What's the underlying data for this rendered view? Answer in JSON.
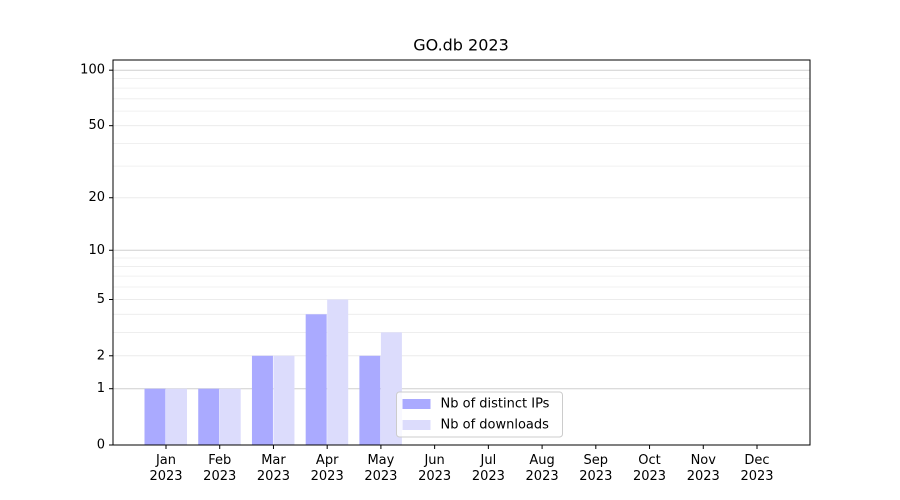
{
  "chart_data": {
    "type": "bar",
    "title": "GO.db 2023",
    "categories": [
      "Jan 2023",
      "Feb 2023",
      "Mar 2023",
      "Apr 2023",
      "May 2023",
      "Jun 2023",
      "Jul 2023",
      "Aug 2023",
      "Sep 2023",
      "Oct 2023",
      "Nov 2023",
      "Dec 2023"
    ],
    "series": [
      {
        "name": "Nb of distinct IPs",
        "color": "#aaaaff",
        "values": [
          1,
          1,
          2,
          4,
          2,
          0,
          0,
          0,
          0,
          0,
          0,
          0
        ]
      },
      {
        "name": "Nb of downloads",
        "color": "#dcdcfc",
        "values": [
          1,
          1,
          2,
          5,
          3,
          0,
          0,
          0,
          0,
          0,
          0,
          0
        ]
      }
    ],
    "yscale": "log1p",
    "ylim": [
      0,
      113.5
    ],
    "yticks": [
      0,
      1,
      2,
      5,
      10,
      20,
      50,
      100
    ],
    "minor_grid": [
      3,
      4,
      6,
      7,
      8,
      9,
      30,
      40,
      60,
      70,
      80,
      90
    ],
    "grid": true,
    "legend": "lower center"
  }
}
